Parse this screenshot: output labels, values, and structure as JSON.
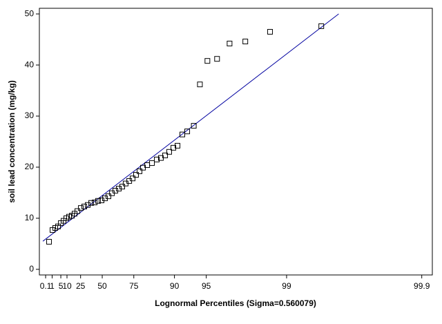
{
  "chart_data": {
    "type": "probability",
    "x_label": "Lognormal Percentiles (Sigma=0.560079)",
    "y_label": "soil lead concentration (mg/kg)",
    "x_scale": "lognormal",
    "x_scale_sigma": 0.560079,
    "xlim": [
      0.0006,
      99.915
    ],
    "xticks": [
      0.1,
      1,
      5,
      10,
      25,
      50,
      75,
      90,
      95,
      99,
      99.9
    ],
    "ylim": [
      -1.1,
      51.1
    ],
    "yticks": [
      0,
      10,
      20,
      30,
      40,
      50
    ],
    "points": {
      "color": "#000000",
      "x": [
        0.405,
        1.1,
        2.01,
        3.3,
        5.0,
        7.01,
        9.38,
        12.0,
        14.89,
        17.93,
        21.18,
        25.29,
        29.46,
        33.61,
        37.75,
        41.76,
        45.58,
        49.28,
        52.79,
        56.12,
        59.33,
        62.25,
        65.02,
        67.58,
        69.95,
        72.27,
        74.31,
        76.24,
        78.03,
        79.67,
        81.54,
        83.42,
        85.15,
        86.45,
        87.68,
        88.76,
        89.76,
        90.66,
        91.6,
        92.45,
        93.46,
        94.27,
        95.12,
        96.02,
        96.93,
        97.77,
        98.63,
        99.47
      ],
      "y": [
        5.4,
        7.7,
        8.1,
        8.4,
        9.05,
        9.5,
        10.0,
        10.3,
        10.5,
        10.9,
        11.4,
        12.0,
        12.3,
        12.6,
        13.0,
        13.1,
        13.4,
        13.5,
        13.9,
        14.3,
        14.9,
        15.4,
        15.8,
        16.2,
        16.8,
        17.3,
        17.8,
        18.5,
        19.2,
        19.9,
        20.4,
        20.8,
        21.5,
        21.8,
        22.3,
        23.0,
        23.8,
        24.2,
        26.4,
        27.0,
        28.1,
        36.2,
        40.8,
        41.2,
        44.2,
        44.6,
        46.5,
        47.6
      ]
    },
    "fit_line": {
      "color": "#0000a0",
      "x": [
        0.019,
        99.61
      ],
      "y": [
        5.5,
        50
      ]
    }
  }
}
